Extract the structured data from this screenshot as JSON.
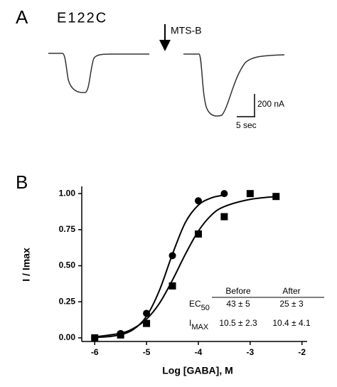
{
  "panel_a": {
    "label": "A",
    "title": "E122C",
    "arrow_label": "MTS-B",
    "scale_current": "200 nA",
    "scale_time": "5 sec"
  },
  "chart_data": {
    "type": "scatter",
    "panel_label": "B",
    "xlabel": "Log [GABA], M",
    "ylabel": "I / Imax",
    "xlim": [
      -6.25,
      -1.9
    ],
    "ylim": [
      -0.025,
      1.05
    ],
    "xticks": [
      -6,
      -5,
      -4,
      -3,
      -2
    ],
    "yticks": [
      {
        "value": 0,
        "label": "0.00"
      },
      {
        "value": 0.25,
        "label": "0.25"
      },
      {
        "value": 0.5,
        "label": "0.50"
      },
      {
        "value": 0.75,
        "label": "0.75"
      },
      {
        "value": 1,
        "label": "1.00"
      }
    ],
    "series": [
      {
        "marker": "circle",
        "color": "#000000",
        "x": [
          -6,
          -5.5,
          -5,
          -4.5,
          -4,
          -3.5
        ],
        "values": [
          0.0,
          0.03,
          0.17,
          0.57,
          0.95,
          1.0
        ]
      },
      {
        "marker": "square",
        "color": "#000000",
        "x": [
          -6,
          -5.5,
          -5,
          -4.5,
          -4,
          -3.5,
          -3,
          -2.5
        ],
        "values": [
          0.0,
          0.02,
          0.1,
          0.36,
          0.72,
          0.84,
          1.0,
          0.98
        ]
      }
    ],
    "fits": [
      {
        "color": "#000000",
        "x": [
          -6,
          -5.75,
          -5.5,
          -5.25,
          -5,
          -4.75,
          -4.5,
          -4.25,
          -4,
          -3.75,
          -3.5
        ],
        "values": [
          0.003,
          0.008,
          0.022,
          0.059,
          0.15,
          0.33,
          0.58,
          0.8,
          0.92,
          0.97,
          0.99
        ]
      },
      {
        "color": "#000000",
        "x": [
          -6,
          -5.5,
          -5.25,
          -5,
          -4.75,
          -4.5,
          -4.25,
          -4,
          -3.75,
          -3.5,
          -3,
          -2.5
        ],
        "values": [
          0.007,
          0.032,
          0.066,
          0.13,
          0.24,
          0.4,
          0.58,
          0.74,
          0.85,
          0.91,
          0.96,
          0.98
        ]
      }
    ],
    "table": {
      "columns": [
        "Before",
        "After"
      ],
      "rows": [
        {
          "label": "EC",
          "label_sub": "50",
          "cells": [
            "43 ± 5",
            "25 ± 3"
          ]
        },
        {
          "label": "I",
          "label_sub": "MAX",
          "cells": [
            "10.5 ± 2.3",
            "10.4 ± 4.1"
          ]
        }
      ]
    }
  }
}
